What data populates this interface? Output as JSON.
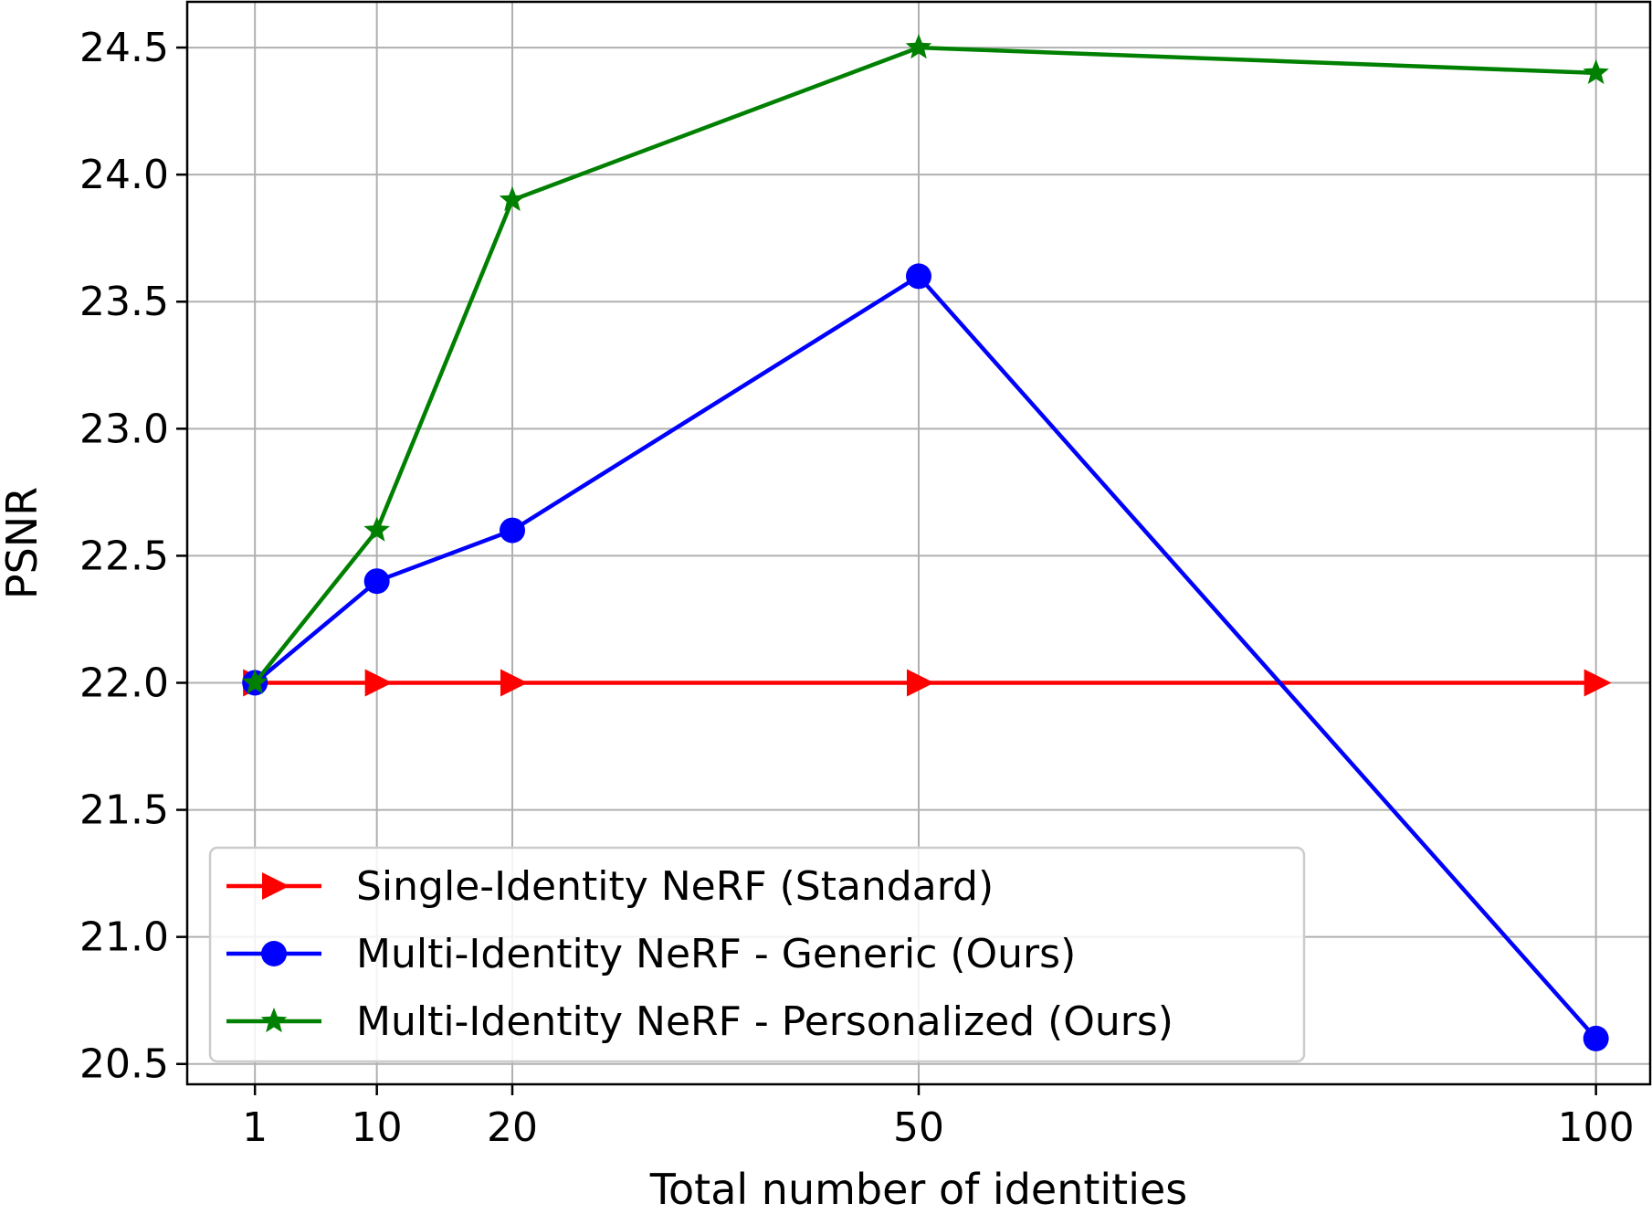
{
  "chart_data": {
    "type": "line",
    "xlabel": "Total number of identities",
    "ylabel": "PSNR",
    "x": [
      1,
      10,
      20,
      50,
      100
    ],
    "x_tick_labels": [
      "1",
      "10",
      "20",
      "50",
      "100"
    ],
    "xlim": [
      -4,
      104
    ],
    "ylim": [
      20.42,
      24.68
    ],
    "y_ticks": [
      20.5,
      21.0,
      21.5,
      22.0,
      22.5,
      23.0,
      23.5,
      24.0,
      24.5
    ],
    "y_tick_labels": [
      "20.5",
      "21.0",
      "21.5",
      "22.0",
      "22.5",
      "23.0",
      "23.5",
      "24.0",
      "24.5"
    ],
    "grid": true,
    "legend_position": "lower-left",
    "series": [
      {
        "name": "Single-Identity NeRF (Standard)",
        "marker": "triangle-right",
        "color": "#ff0000",
        "values": [
          22.0,
          22.0,
          22.0,
          22.0,
          22.0
        ]
      },
      {
        "name": "Multi-Identity NeRF - Generic (Ours)",
        "marker": "circle",
        "color": "#0000ff",
        "values": [
          22.0,
          22.4,
          22.6,
          23.6,
          20.6
        ]
      },
      {
        "name": "Multi-Identity NeRF - Personalized (Ours)",
        "marker": "star",
        "color": "#008000",
        "values": [
          22.0,
          22.6,
          23.9,
          24.5,
          24.4
        ]
      }
    ]
  }
}
